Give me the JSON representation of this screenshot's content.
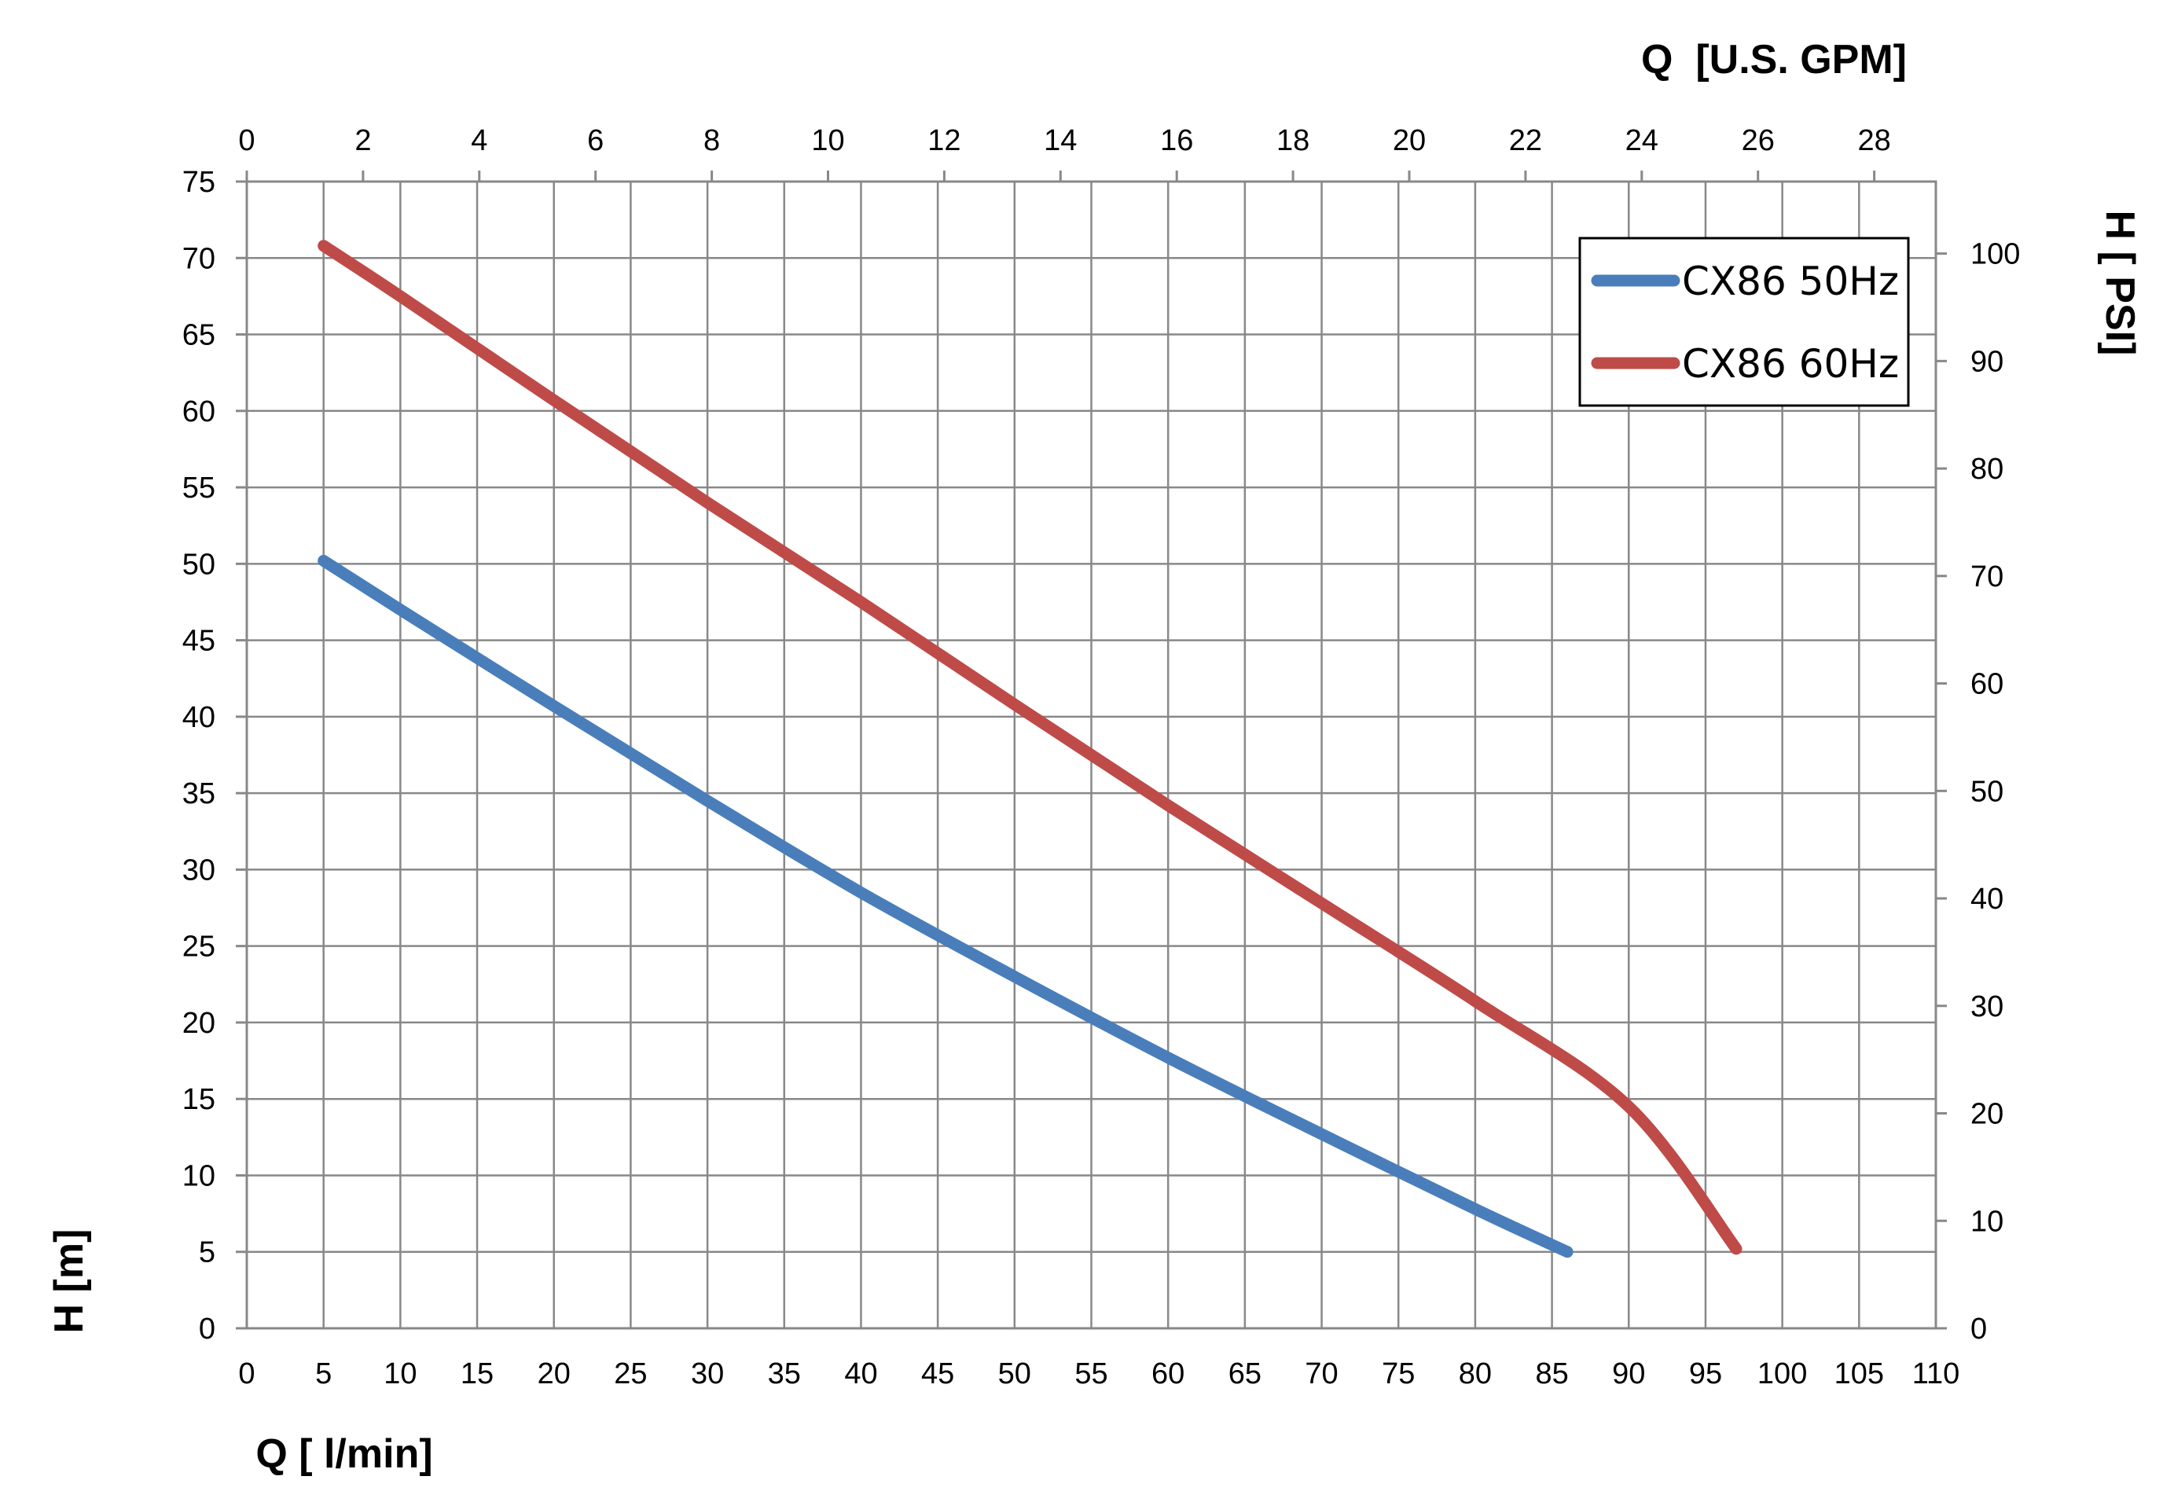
{
  "chart_data": {
    "type": "line",
    "x_bottom": {
      "label": "Q [ l/min]",
      "range": [
        0,
        110
      ],
      "step": 5
    },
    "x_top": {
      "label": "Q  [U.S. GPM]",
      "range": [
        0,
        29.06
      ],
      "ticks": [
        0,
        2,
        4,
        6,
        8,
        10,
        12,
        14,
        16,
        18,
        20,
        22,
        24,
        26,
        28
      ]
    },
    "y_left": {
      "label": "H [m]",
      "range": [
        0,
        75
      ],
      "step": 5
    },
    "y_right": {
      "label": "H [ PSI]",
      "range": [
        0,
        106.7
      ],
      "ticks": [
        0,
        10,
        20,
        30,
        40,
        50,
        60,
        70,
        80,
        90,
        100
      ]
    },
    "grid": true,
    "legend_position": "top-right",
    "series": [
      {
        "name": "CX86 50Hz",
        "color": "#4a7ebb",
        "x": [
          5,
          10,
          20,
          30,
          40,
          50,
          60,
          70,
          80,
          86
        ],
        "y": [
          50.2,
          47,
          40.7,
          34.5,
          28.5,
          23,
          17.7,
          12.7,
          7.8,
          5
        ]
      },
      {
        "name": "CX86 60Hz",
        "color": "#be4b48",
        "x": [
          5,
          10,
          20,
          30,
          40,
          50,
          60,
          70,
          80,
          90,
          97
        ],
        "y": [
          70.8,
          67.5,
          60.7,
          54,
          47.5,
          40.8,
          34.2,
          27.8,
          21.4,
          14.5,
          5.2
        ]
      }
    ]
  }
}
